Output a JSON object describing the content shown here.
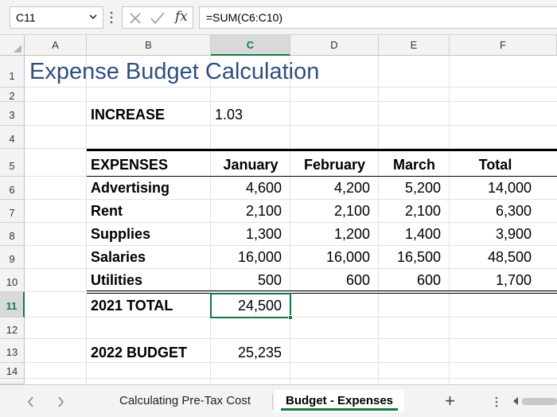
{
  "formula_bar": {
    "name_box": "C11",
    "fx_label": "fx",
    "formula": "=SUM(C6:C10)"
  },
  "grid": {
    "columns": [
      "A",
      "B",
      "C",
      "D",
      "E",
      "F"
    ],
    "rows": [
      "1",
      "2",
      "3",
      "4",
      "5",
      "6",
      "7",
      "8",
      "9",
      "10",
      "11",
      "12",
      "13",
      "14"
    ],
    "selected_cell": "C11"
  },
  "sheet": {
    "title": "Expense Budget Calculation",
    "increase_label": "INCREASE",
    "increase_value": "1.03",
    "header": {
      "expenses": "EXPENSES",
      "january": "January",
      "february": "February",
      "march": "March",
      "total": "Total"
    },
    "expense_rows": [
      {
        "name": "Advertising",
        "jan": "4,600",
        "feb": "4,200",
        "mar": "5,200",
        "total": "14,000"
      },
      {
        "name": "Rent",
        "jan": "2,100",
        "feb": "2,100",
        "mar": "2,100",
        "total": "6,300"
      },
      {
        "name": "Supplies",
        "jan": "1,300",
        "feb": "1,200",
        "mar": "1,400",
        "total": "3,900"
      },
      {
        "name": "Salaries",
        "jan": "16,000",
        "feb": "16,000",
        "mar": "16,500",
        "total": "48,500"
      },
      {
        "name": "Utilities",
        "jan": "500",
        "feb": "600",
        "mar": "600",
        "total": "1,700"
      }
    ],
    "total_label": "2021 TOTAL",
    "total_value": "24,500",
    "budget_label": "2022 BUDGET",
    "budget_value": "25,235"
  },
  "tabs": {
    "items": [
      {
        "label": "Calculating Pre-Tax Cost",
        "active": false
      },
      {
        "label": "Budget - Expenses",
        "active": true
      }
    ],
    "add_label": "+"
  },
  "icons": {
    "name_box_dropdown": "chevron-down-icon",
    "more_options": "vertical-dots-icon",
    "cancel": "cancel-x-icon",
    "enter": "checkmark-icon",
    "insert_function": "fx-icon",
    "prev_sheet": "chevron-left-icon",
    "next_sheet": "chevron-right-icon",
    "sheet_options": "vertical-dots-icon",
    "scroll_left": "scroll-left-arrow-icon"
  },
  "colors": {
    "accent": "#107c41",
    "title": "#2f4f7f",
    "header_bg": "#f3f3f3"
  }
}
